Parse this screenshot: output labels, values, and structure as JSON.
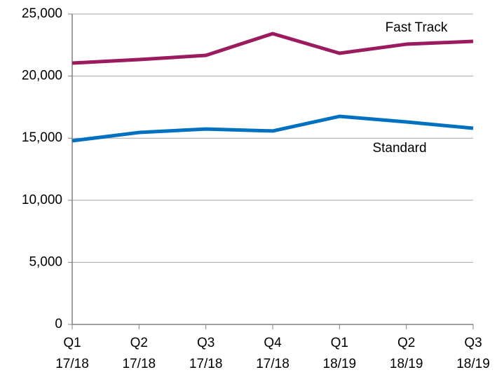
{
  "chart_data": {
    "type": "line",
    "categories": [
      "Q1 17/18",
      "Q2 17/18",
      "Q3 17/18",
      "Q4 17/18",
      "Q1 18/19",
      "Q2 18/19",
      "Q3 18/19"
    ],
    "series": [
      {
        "name": "Fast Track",
        "color": "#9b1b5e",
        "values": [
          21050,
          21330,
          21670,
          23420,
          21840,
          22570,
          22800
        ]
      },
      {
        "name": "Standard",
        "color": "#0070c0",
        "values": [
          14790,
          15460,
          15740,
          15580,
          16760,
          16310,
          15800
        ]
      }
    ],
    "ylim": [
      0,
      25000
    ],
    "yticks": [
      0,
      {
        "value": 5000,
        "label": "5,000"
      },
      {
        "value": 10000,
        "label": "10,000"
      },
      {
        "value": 15000,
        "label": "15,000"
      },
      {
        "value": 20000,
        "label": "20,000"
      },
      {
        "value": 25000,
        "label": "25,000"
      }
    ],
    "grid": true
  }
}
